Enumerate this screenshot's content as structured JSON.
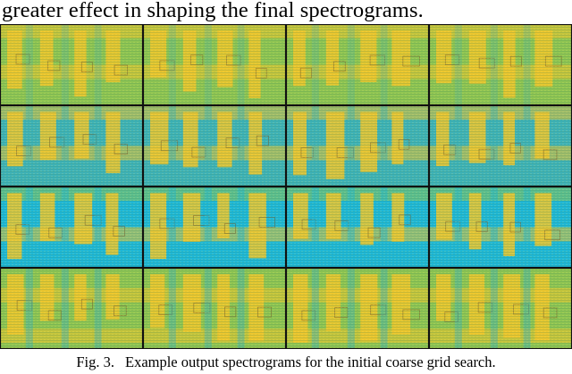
{
  "page": {
    "top_text": "greater effect in shaping the final spectrograms.",
    "caption_label": "Fig. 3.",
    "caption_text": "Example output spectrograms for the initial coarse grid search."
  },
  "figure": {
    "rows": 4,
    "columns": 4,
    "colors": {
      "yellow": "#f2c52a",
      "green": "#8fc552",
      "teal": "#3fb3b8",
      "cyan": "#1fb8d8",
      "border": "#111111"
    }
  }
}
